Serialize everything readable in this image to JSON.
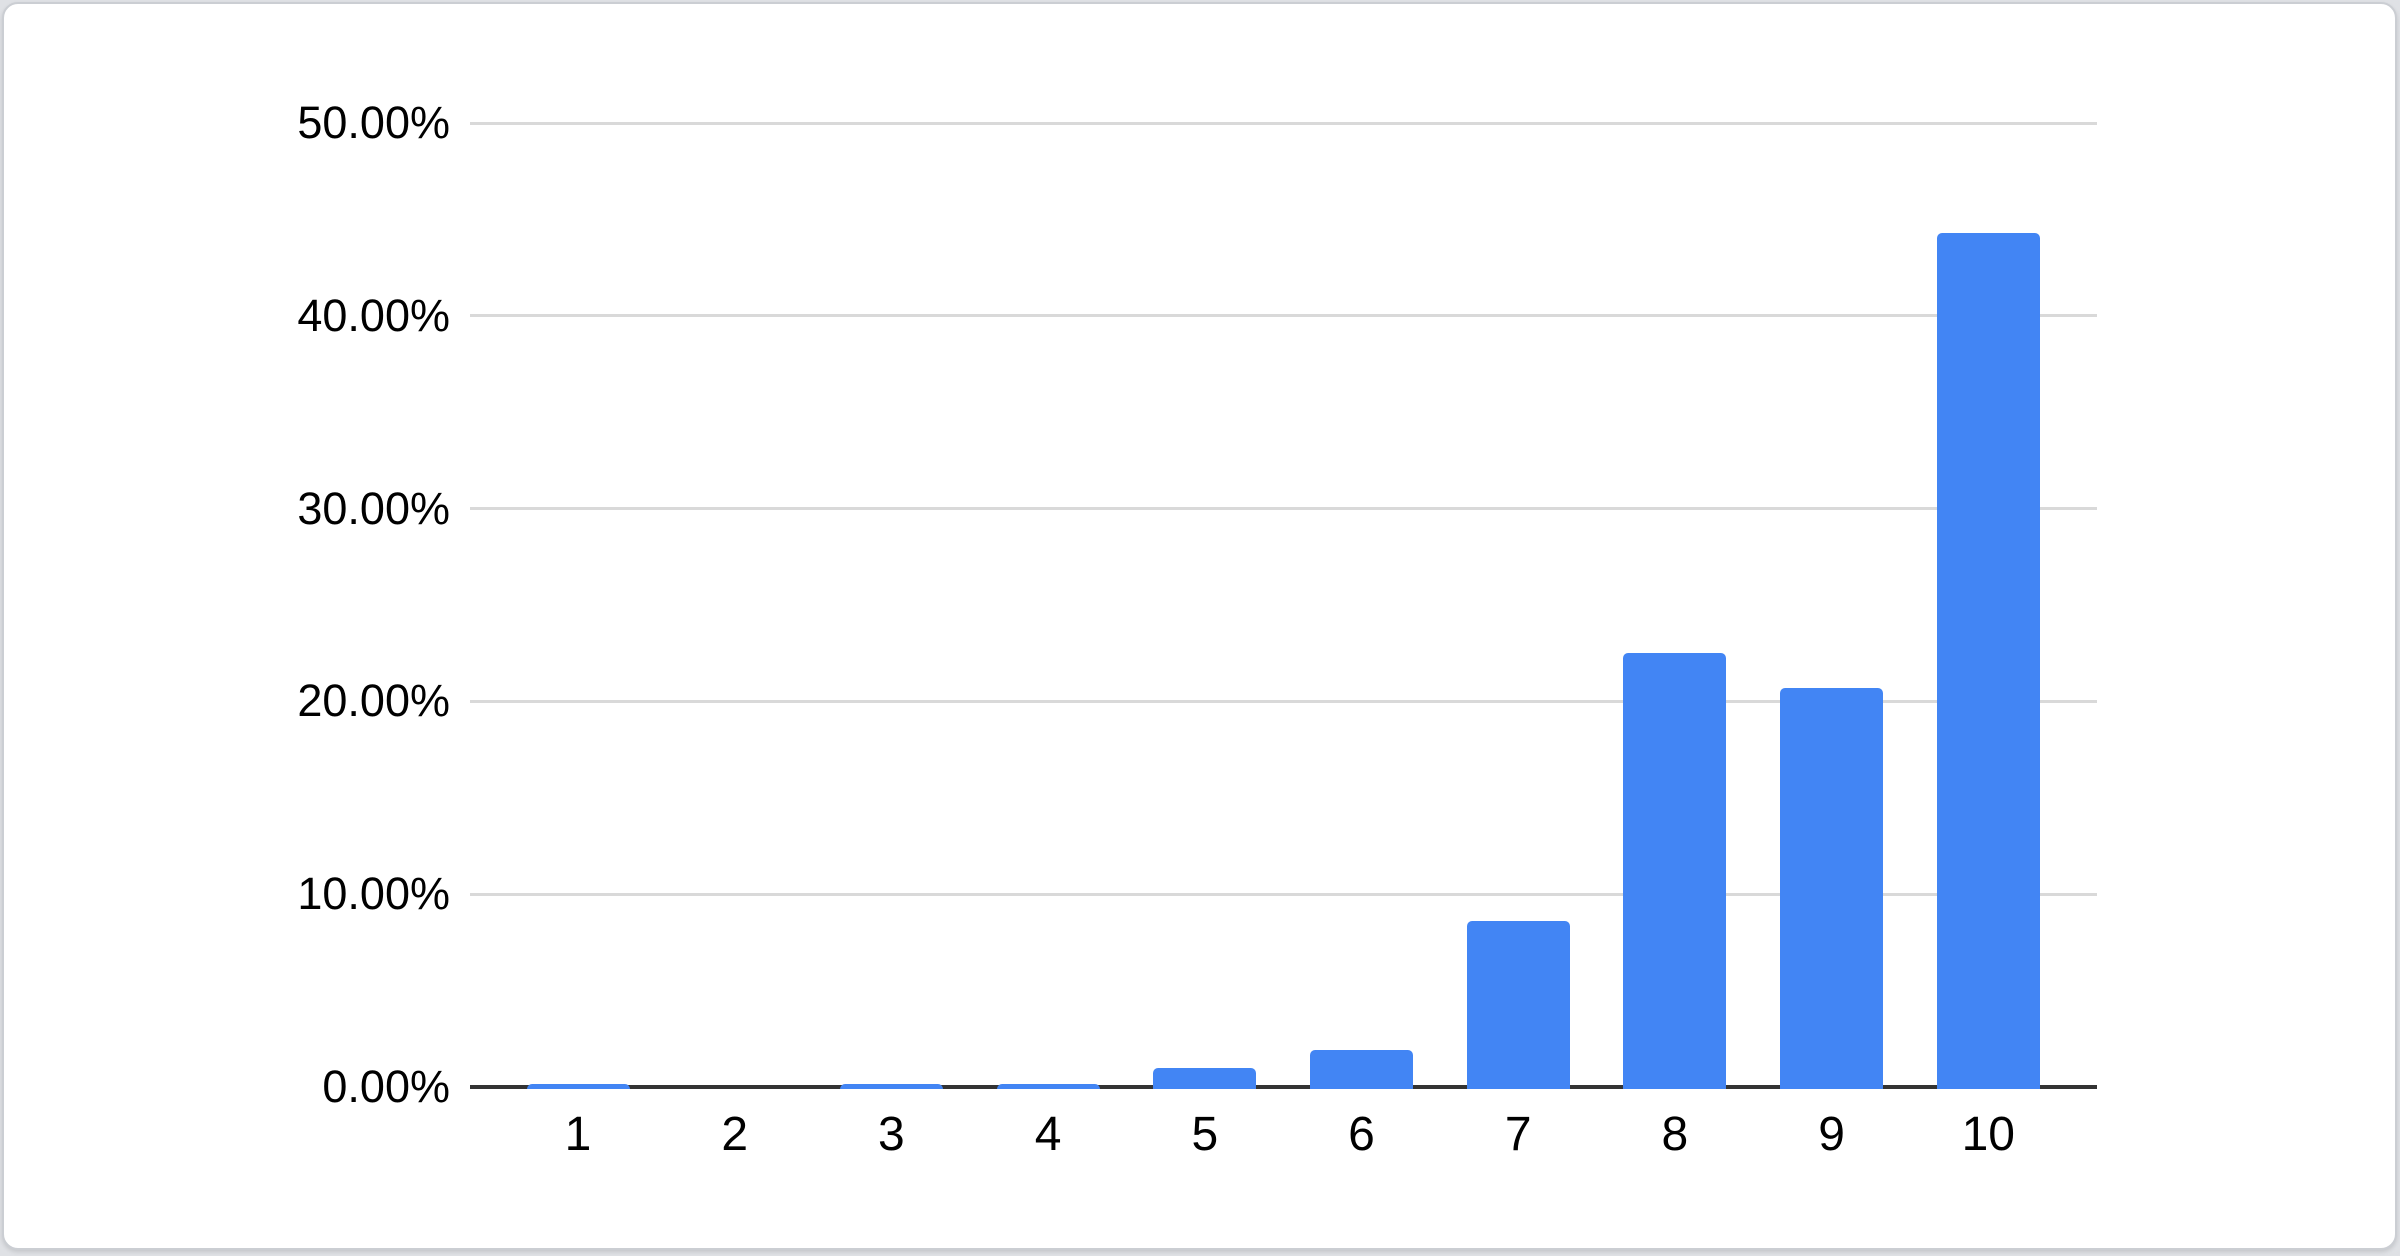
{
  "chart_data": {
    "type": "bar",
    "title": "",
    "xlabel": "",
    "ylabel": "",
    "categories": [
      "1",
      "2",
      "3",
      "4",
      "5",
      "6",
      "7",
      "8",
      "9",
      "10"
    ],
    "values": [
      0.1,
      0,
      0.1,
      0.1,
      1.0,
      1.9,
      8.6,
      22.5,
      20.7,
      44.3
    ],
    "value_unit": "%",
    "series_count": 1,
    "ylim": [
      0,
      50
    ],
    "y_ticks": [
      {
        "value": 0,
        "label": "0.00%"
      },
      {
        "value": 10,
        "label": "10.00%"
      },
      {
        "value": 20,
        "label": "20.00%"
      },
      {
        "value": 30,
        "label": "30.00%"
      },
      {
        "value": 40,
        "label": "40.00%"
      },
      {
        "value": 50,
        "label": "50.00%"
      }
    ],
    "grid": true,
    "legend": "none",
    "colors": {
      "bar": "#4285f4",
      "gridline": "#d9d9d9",
      "baseline": "#333333",
      "label": "#000000",
      "card_background": "#ffffff",
      "card_border": "#cbced3",
      "page_background": "#dfe1e5"
    }
  }
}
